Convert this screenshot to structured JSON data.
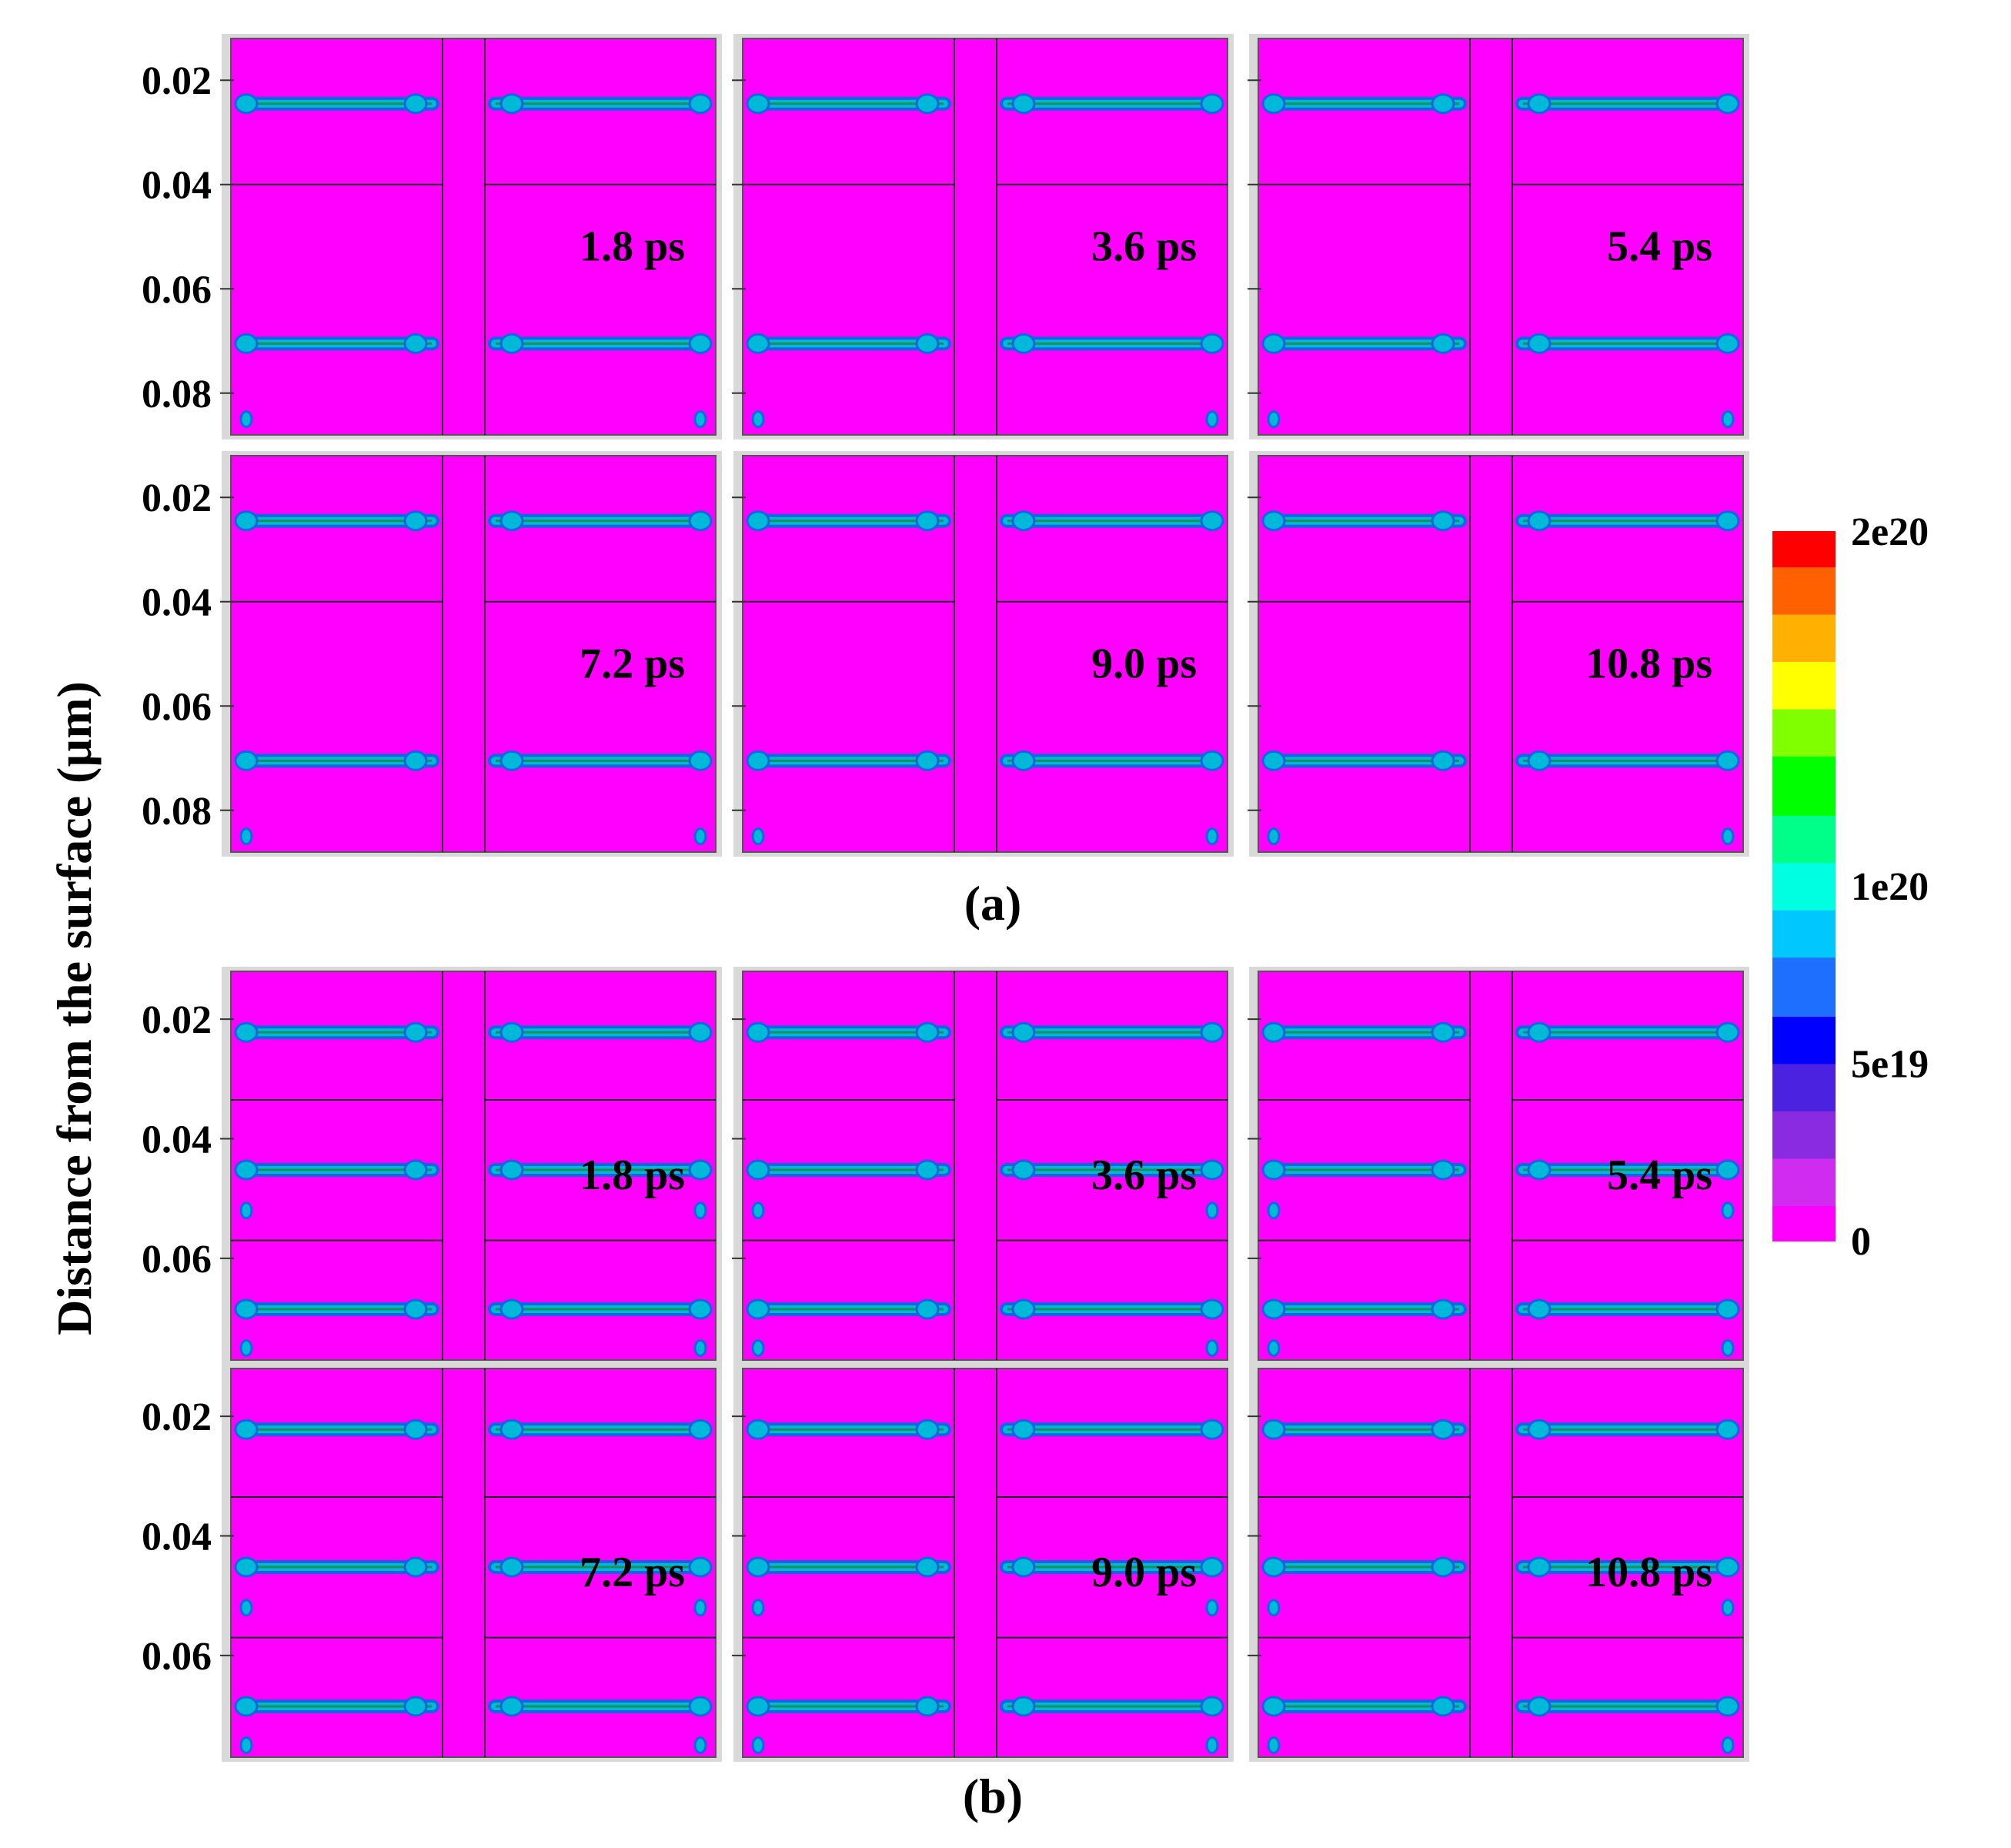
{
  "y_axis_label": "Distance from the surface (µm)",
  "colors": {
    "background": "#ff00ff",
    "band_outer": "#1565e0",
    "band_mid": "#00b8d8",
    "band_core": "#1f8f5a",
    "grain_line": "#222222",
    "frame": "#d9d9d9"
  },
  "chart_data": [
    {
      "type": "heatmap",
      "id": "a",
      "caption": "(a)",
      "ylabel": "Distance from the surface (µm)",
      "yticks": [
        "0.02",
        "0.04",
        "0.06",
        "0.08"
      ],
      "y_tick_values": [
        0.02,
        0.04,
        0.06,
        0.08
      ],
      "ylim": [
        0.012,
        0.088
      ],
      "grain_boundaries_depth": [
        0.04
      ],
      "band_depths": [
        0.0245,
        0.0705
      ],
      "defect_points_depth": [
        0.085
      ],
      "panels": [
        {
          "time": "1.8 ps"
        },
        {
          "time": "3.6 ps"
        },
        {
          "time": "5.4 ps"
        },
        {
          "time": "7.2 ps"
        },
        {
          "time": "9.0 ps"
        },
        {
          "time": "10.8 ps"
        }
      ]
    },
    {
      "type": "heatmap",
      "id": "b",
      "caption": "(b)",
      "ylabel": "Distance from the surface (µm)",
      "yticks": [
        "0.02",
        "0.04",
        "0.06"
      ],
      "y_tick_values": [
        0.02,
        0.04,
        0.06
      ],
      "ylim": [
        0.012,
        0.077
      ],
      "grain_boundaries_depth": [
        0.0335,
        0.057
      ],
      "band_depths": [
        0.0222,
        0.0452,
        0.0685
      ],
      "defect_points_depth": [
        0.052,
        0.075
      ],
      "panels": [
        {
          "time": "1.8 ps"
        },
        {
          "time": "3.6 ps"
        },
        {
          "time": "5.4 ps"
        },
        {
          "time": "7.2 ps"
        },
        {
          "time": "9.0 ps"
        },
        {
          "time": "10.8 ps"
        }
      ]
    }
  ],
  "colorbar": {
    "min": 0,
    "max": 2e+20,
    "ticks": [
      {
        "label": "2e20",
        "value": 2e+20
      },
      {
        "label": "1e20",
        "value": 1e+20
      },
      {
        "label": "5e19",
        "value": 5e+19
      },
      {
        "label": "0",
        "value": 0
      }
    ],
    "stops": [
      "#ff00ff",
      "#d02cf0",
      "#8a2be2",
      "#4b22e0",
      "#0000ff",
      "#1f6fff",
      "#00c8ff",
      "#00ffe0",
      "#00ff88",
      "#00ff00",
      "#80ff00",
      "#ffff00",
      "#ffb000",
      "#ff6000",
      "#ff0000"
    ]
  }
}
